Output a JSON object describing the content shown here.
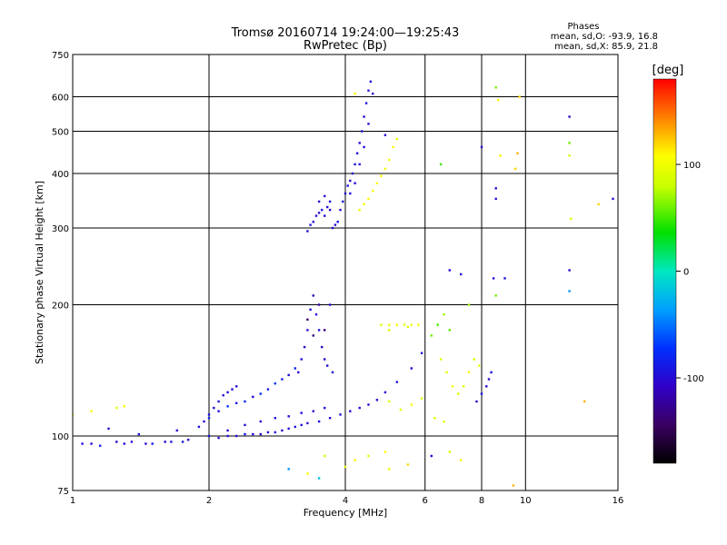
{
  "chart_data": {
    "type": "scatter",
    "title": "Tromsø 20160714 19:24:00—19:25:43",
    "subtitle": "RwPretec (Bp)",
    "xlabel": "Frequency [MHz]",
    "ylabel": "Stationary phase Virtual Height [km]",
    "x_scale": "log",
    "y_scale": "log",
    "xlim": [
      1,
      16
    ],
    "ylim": [
      75,
      750
    ],
    "x_ticks": [
      1,
      2,
      4,
      6,
      8,
      10,
      16
    ],
    "y_ticks": [
      75,
      100,
      200,
      300,
      400,
      500,
      600,
      750
    ],
    "grid": true,
    "phase_info": {
      "title": "Phases",
      "line_o": "mean, sd,O: -93.9, 16.8",
      "line_x": "mean, sd,X:  85.9, 21.8"
    },
    "colorbar": {
      "label": "[deg]",
      "min": -180,
      "max": 180,
      "ticks": [
        100,
        0,
        -100
      ]
    },
    "series": [
      {
        "points": [
          [
            1.05,
            96,
            -95
          ],
          [
            1.1,
            96,
            -100
          ],
          [
            1.15,
            95,
            -90
          ],
          [
            1.2,
            104,
            -95
          ],
          [
            1.25,
            97,
            -100
          ],
          [
            1.3,
            96,
            -95
          ],
          [
            1.35,
            97,
            -100
          ],
          [
            1.4,
            101,
            -95
          ],
          [
            1.45,
            96,
            -100
          ],
          [
            1.5,
            96,
            -90
          ],
          [
            1.6,
            97,
            -100
          ],
          [
            1.65,
            97,
            -95
          ],
          [
            1.7,
            103,
            -100
          ],
          [
            1.75,
            97,
            -95
          ],
          [
            1.8,
            98,
            -100
          ],
          [
            1.9,
            105,
            -95
          ],
          [
            2.0,
            100,
            -95
          ],
          [
            2.1,
            99,
            -100
          ],
          [
            2.2,
            100,
            -95
          ],
          [
            2.3,
            100,
            -100
          ],
          [
            2.4,
            101,
            -90
          ],
          [
            2.5,
            101,
            -95
          ],
          [
            2.6,
            101,
            -100
          ],
          [
            2.7,
            102,
            -95
          ],
          [
            2.8,
            102,
            -90
          ],
          [
            2.9,
            103,
            -100
          ],
          [
            3.0,
            104,
            -95
          ],
          [
            3.1,
            105,
            -100
          ],
          [
            3.2,
            106,
            -95
          ],
          [
            3.3,
            107,
            -100
          ],
          [
            3.5,
            108,
            -95
          ],
          [
            3.7,
            110,
            -100
          ],
          [
            3.9,
            112,
            -95
          ],
          [
            4.1,
            114,
            -100
          ],
          [
            4.3,
            116,
            -95
          ],
          [
            4.5,
            118,
            -100
          ],
          [
            4.7,
            121,
            -95
          ],
          [
            4.9,
            126,
            -100
          ],
          [
            5.2,
            133,
            -95
          ],
          [
            5.6,
            143,
            -100
          ],
          [
            5.9,
            155,
            -95
          ],
          [
            2.0,
            110,
            -80
          ],
          [
            2.1,
            114,
            -95
          ],
          [
            2.2,
            117,
            -70
          ],
          [
            2.3,
            119,
            -90
          ],
          [
            2.4,
            120,
            -80
          ],
          [
            2.5,
            123,
            -95
          ],
          [
            2.6,
            125,
            -75
          ],
          [
            2.7,
            128,
            -90
          ],
          [
            2.8,
            132,
            -70
          ],
          [
            2.9,
            135,
            -85
          ],
          [
            3.0,
            138,
            -95
          ],
          [
            3.1,
            143,
            -80
          ],
          [
            1.95,
            108,
            -100
          ],
          [
            2.0,
            112,
            -95
          ],
          [
            2.05,
            116,
            -100
          ],
          [
            2.1,
            120,
            -95
          ],
          [
            2.15,
            124,
            -100
          ],
          [
            2.2,
            126,
            -95
          ],
          [
            2.25,
            128,
            -100
          ],
          [
            2.3,
            130,
            -95
          ],
          [
            2.2,
            103,
            -100
          ],
          [
            2.4,
            106,
            -95
          ],
          [
            2.6,
            108,
            -100
          ],
          [
            2.8,
            110,
            -95
          ],
          [
            3.0,
            111,
            -100
          ],
          [
            3.2,
            113,
            -95
          ],
          [
            3.4,
            114,
            -100
          ],
          [
            3.6,
            116,
            -95
          ],
          [
            3.15,
            140,
            -100
          ],
          [
            3.2,
            150,
            -95
          ],
          [
            3.25,
            160,
            -110
          ],
          [
            3.3,
            175,
            -100
          ],
          [
            3.35,
            195,
            -95
          ],
          [
            3.4,
            210,
            -120
          ],
          [
            3.45,
            190,
            -100
          ],
          [
            3.5,
            175,
            -95
          ],
          [
            3.55,
            160,
            -110
          ],
          [
            3.6,
            150,
            -100
          ],
          [
            3.65,
            145,
            -95
          ],
          [
            3.7,
            200,
            -100
          ],
          [
            3.75,
            140,
            -95
          ],
          [
            3.4,
            170,
            -130
          ],
          [
            3.5,
            200,
            -120
          ],
          [
            3.3,
            185,
            -140
          ],
          [
            3.6,
            175,
            -125
          ],
          [
            3.3,
            295,
            -100
          ],
          [
            3.35,
            305,
            -95
          ],
          [
            3.4,
            310,
            -100
          ],
          [
            3.45,
            320,
            -95
          ],
          [
            3.5,
            325,
            -100
          ],
          [
            3.55,
            330,
            -95
          ],
          [
            3.6,
            320,
            -100
          ],
          [
            3.65,
            335,
            -95
          ],
          [
            3.7,
            330,
            -100
          ],
          [
            3.75,
            300,
            -95
          ],
          [
            3.8,
            305,
            -100
          ],
          [
            3.85,
            310,
            -95
          ],
          [
            3.6,
            355,
            -100
          ],
          [
            3.7,
            345,
            -95
          ],
          [
            3.5,
            345,
            -100
          ],
          [
            3.9,
            330,
            -100
          ],
          [
            3.95,
            345,
            -95
          ],
          [
            4.0,
            360,
            -100
          ],
          [
            4.05,
            375,
            -95
          ],
          [
            4.1,
            385,
            -100
          ],
          [
            4.15,
            400,
            -95
          ],
          [
            4.2,
            420,
            -100
          ],
          [
            4.25,
            445,
            -95
          ],
          [
            4.3,
            470,
            -100
          ],
          [
            4.35,
            500,
            -95
          ],
          [
            4.4,
            540,
            -100
          ],
          [
            4.45,
            580,
            -95
          ],
          [
            4.5,
            620,
            -100
          ],
          [
            4.55,
            650,
            -95
          ],
          [
            4.6,
            610,
            -100
          ],
          [
            4.4,
            460,
            -95
          ],
          [
            4.5,
            520,
            -100
          ],
          [
            4.3,
            420,
            -95
          ],
          [
            4.2,
            380,
            -100
          ],
          [
            4.1,
            360,
            -95
          ],
          [
            4.3,
            330,
            100
          ],
          [
            4.4,
            340,
            105
          ],
          [
            4.5,
            350,
            110
          ],
          [
            4.6,
            365,
            100
          ],
          [
            4.7,
            380,
            105
          ],
          [
            4.8,
            395,
            110
          ],
          [
            4.9,
            410,
            100
          ],
          [
            5.0,
            430,
            105
          ],
          [
            5.1,
            460,
            110
          ],
          [
            5.2,
            480,
            100
          ],
          [
            4.8,
            180,
            95
          ],
          [
            5.0,
            180,
            100
          ],
          [
            5.2,
            180,
            105
          ],
          [
            5.4,
            180,
            95
          ],
          [
            5.6,
            180,
            100
          ],
          [
            5.8,
            180,
            105
          ],
          [
            5.0,
            175,
            90
          ],
          [
            5.5,
            178,
            95
          ],
          [
            5.0,
            120,
            90
          ],
          [
            5.3,
            115,
            95
          ],
          [
            5.6,
            118,
            100
          ],
          [
            5.9,
            122,
            90
          ],
          [
            6.2,
            170,
            60
          ],
          [
            6.4,
            180,
            50
          ],
          [
            6.6,
            190,
            70
          ],
          [
            6.8,
            175,
            55
          ],
          [
            6.5,
            150,
            90
          ],
          [
            6.7,
            140,
            95
          ],
          [
            6.9,
            130,
            100
          ],
          [
            7.1,
            125,
            90
          ],
          [
            7.3,
            130,
            95
          ],
          [
            7.5,
            140,
            100
          ],
          [
            7.7,
            150,
            90
          ],
          [
            7.9,
            145,
            95
          ],
          [
            6.3,
            110,
            90
          ],
          [
            6.6,
            108,
            95
          ],
          [
            7.8,
            120,
            -100
          ],
          [
            8.0,
            125,
            -95
          ],
          [
            8.2,
            130,
            -100
          ],
          [
            8.4,
            140,
            -95
          ],
          [
            8.3,
            135,
            -100
          ],
          [
            6.8,
            240,
            -100
          ],
          [
            7.2,
            235,
            -95
          ],
          [
            7.5,
            200,
            70
          ],
          [
            8.5,
            230,
            -100
          ],
          [
            8.6,
            210,
            60
          ],
          [
            9.0,
            230,
            -95
          ],
          [
            4.9,
            490,
            -100
          ],
          [
            6.5,
            420,
            50
          ],
          [
            8.0,
            460,
            -100
          ],
          [
            8.6,
            350,
            -95
          ],
          [
            8.8,
            440,
            100
          ],
          [
            9.5,
            410,
            120
          ],
          [
            9.6,
            445,
            130
          ],
          [
            9.7,
            600,
            120
          ],
          [
            12.5,
            540,
            -100
          ],
          [
            12.5,
            470,
            60
          ],
          [
            12.5,
            440,
            80
          ],
          [
            12.6,
            315,
            90
          ],
          [
            12.5,
            240,
            -100
          ],
          [
            12.5,
            215,
            -40
          ],
          [
            13.5,
            120,
            130
          ],
          [
            14.5,
            340,
            120
          ],
          [
            15.6,
            350,
            -100
          ],
          [
            8.6,
            630,
            60
          ],
          [
            8.7,
            590,
            110
          ],
          [
            4.2,
            610,
            110
          ],
          [
            8.6,
            370,
            -100
          ],
          [
            4.0,
            85,
            100
          ],
          [
            4.2,
            88,
            110
          ],
          [
            4.5,
            90,
            95
          ],
          [
            5.0,
            84,
            100
          ],
          [
            5.5,
            86,
            120
          ],
          [
            3.6,
            90,
            80
          ],
          [
            3.3,
            82,
            100
          ],
          [
            6.2,
            90,
            -100
          ],
          [
            6.8,
            92,
            90
          ],
          [
            7.2,
            88,
            100
          ],
          [
            3.0,
            84,
            -40
          ],
          [
            3.5,
            80,
            -20
          ],
          [
            9.4,
            77,
            130
          ],
          [
            4.9,
            92,
            110
          ],
          [
            1.0,
            112,
            110
          ],
          [
            1.1,
            114,
            105
          ],
          [
            1.25,
            116,
            90
          ],
          [
            1.3,
            117,
            100
          ]
        ]
      }
    ]
  }
}
